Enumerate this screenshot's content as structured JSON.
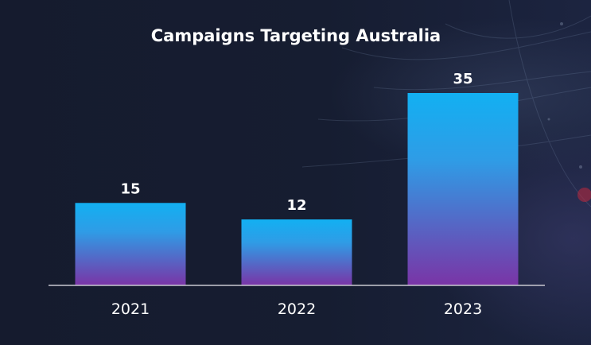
{
  "chart_data": {
    "type": "bar",
    "title": "Campaigns Targeting Australia",
    "categories": [
      "2021",
      "2022",
      "2023"
    ],
    "values": [
      15,
      12,
      35
    ],
    "xlabel": "",
    "ylabel": "",
    "ylim": [
      0,
      35
    ],
    "grid": false,
    "legend": "none",
    "data_labels": true
  },
  "colors": {
    "background": "#131a2c",
    "bar_top": "#12b0f2",
    "bar_bottom": "#7a34a6",
    "axis_line": "#c8c8d0",
    "text": "#ffffff"
  }
}
